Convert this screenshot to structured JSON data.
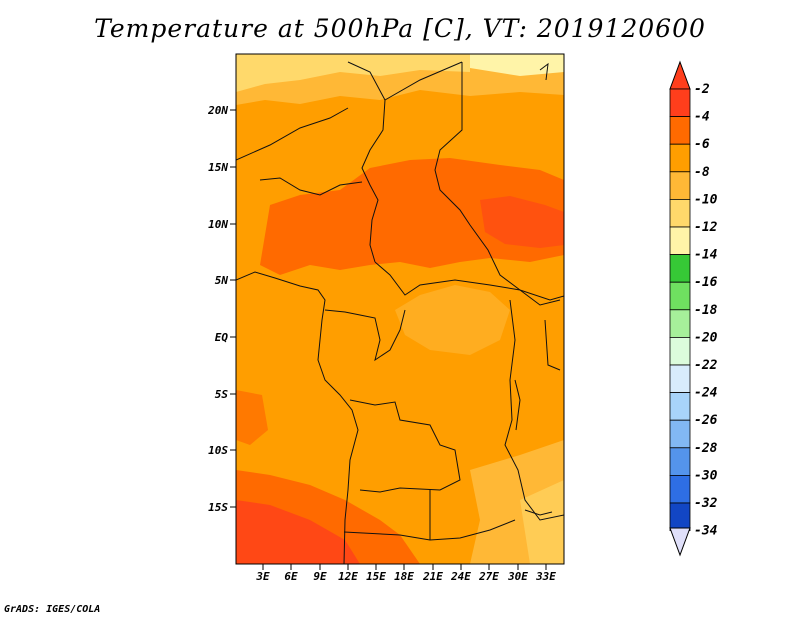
{
  "title": "Temperature at 500hPa [C], VT: 2019120600",
  "credit": "GrADS: IGES/COLA",
  "y_ticks": [
    "20N",
    "15N",
    "10N",
    "5N",
    "EQ",
    "5S",
    "10S",
    "15S"
  ],
  "x_ticks": [
    "3E",
    "6E",
    "9E",
    "12E",
    "15E",
    "18E",
    "21E",
    "24E",
    "27E",
    "30E",
    "33E"
  ],
  "colorbar": {
    "labels": [
      "-2",
      "-4",
      "-6",
      "-8",
      "-10",
      "-12",
      "-14",
      "-16",
      "-18",
      "-20",
      "-22",
      "-24",
      "-26",
      "-28",
      "-30",
      "-32",
      "-34"
    ],
    "colors": [
      "#ff3e1c",
      "#ff6a00",
      "#ff9e00",
      "#ffb836",
      "#ffd96b",
      "#fff4a8",
      "#36c836",
      "#6fe060",
      "#a6f09a",
      "#dcfcdc",
      "#d8ecfc",
      "#a8d4fa",
      "#82b8f4",
      "#5494ec",
      "#2e6ee4",
      "#1246c4",
      "#0c1464"
    ],
    "top_arrow_color": "#ff3e1c",
    "bottom_arrow_color": "#e0e0fa"
  },
  "field_colors": {
    "t2": "#ff6a00",
    "t4": "#ff9e00",
    "t6": "#ffb836",
    "t8": "#ffd96b",
    "t10": "#fff4a8",
    "t0": "#ff3e1c"
  }
}
